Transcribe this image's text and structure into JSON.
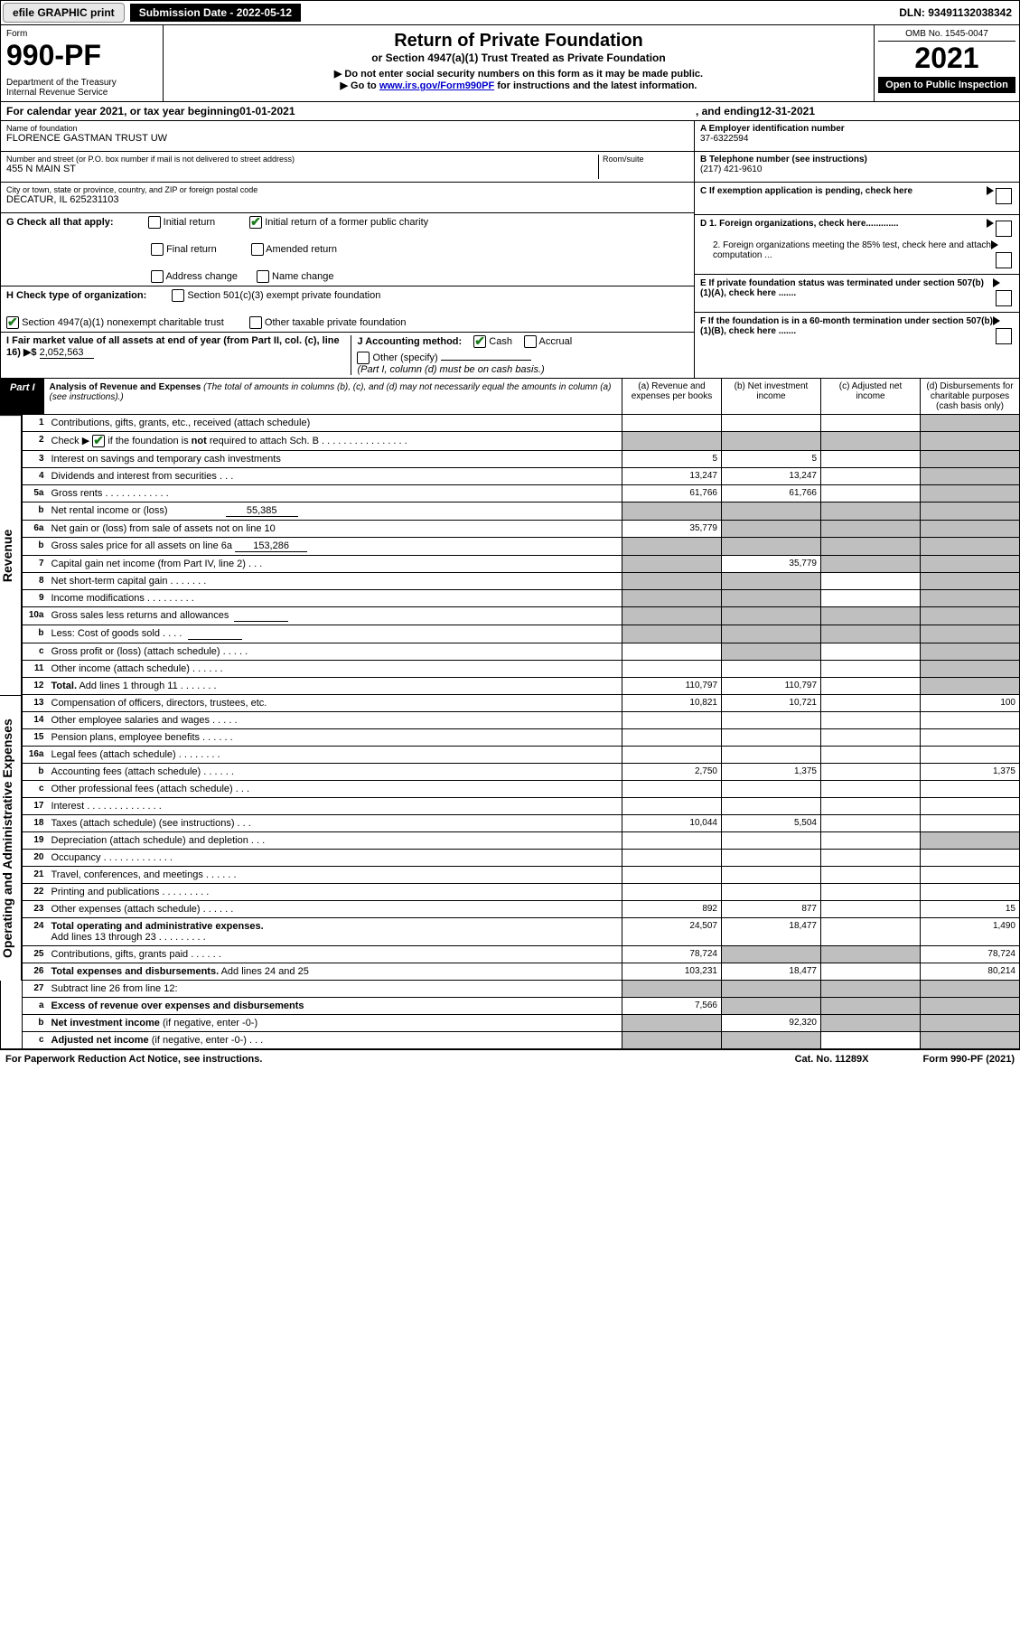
{
  "topbar": {
    "efile": "efile GRAPHIC print",
    "submission_label": "Submission Date - 2022-05-12",
    "dln": "DLN: 93491132038342"
  },
  "header": {
    "form_label": "Form",
    "form_number": "990-PF",
    "dept": "Department of the Treasury\nInternal Revenue Service",
    "title": "Return of Private Foundation",
    "subtitle": "or Section 4947(a)(1) Trust Treated as Private Foundation",
    "note1": "▶ Do not enter social security numbers on this form as it may be made public.",
    "note2_prefix": "▶ Go to ",
    "note2_link": "www.irs.gov/Form990PF",
    "note2_suffix": " for instructions and the latest information.",
    "omb": "OMB No. 1545-0047",
    "year": "2021",
    "open": "Open to Public Inspection"
  },
  "cal_year": {
    "prefix": "For calendar year 2021, or tax year beginning ",
    "begin": "01-01-2021",
    "mid": ", and ending ",
    "end": "12-31-2021"
  },
  "info": {
    "name_label": "Name of foundation",
    "name": "FLORENCE GASTMAN TRUST UW",
    "addr_label": "Number and street (or P.O. box number if mail is not delivered to street address)",
    "addr": "455 N MAIN ST",
    "room_label": "Room/suite",
    "city_label": "City or town, state or province, country, and ZIP or foreign postal code",
    "city": "DECATUR, IL 625231103",
    "a_label": "A Employer identification number",
    "a_val": "37-6322594",
    "b_label": "B Telephone number (see instructions)",
    "b_val": "(217) 421-9610",
    "c_label": "C If exemption application is pending, check here",
    "d1_label": "D 1. Foreign organizations, check here.............",
    "d2_label": "2. Foreign organizations meeting the 85% test, check here and attach computation ...",
    "e_label": "E If private foundation status was terminated under section 507(b)(1)(A), check here .......",
    "f_label": "F If the foundation is in a 60-month termination under section 507(b)(1)(B), check here ......."
  },
  "checks": {
    "g_label": "G Check all that apply:",
    "g_opts": [
      "Initial return",
      "Initial return of a former public charity",
      "Final return",
      "Amended return",
      "Address change",
      "Name change"
    ],
    "h_label": "H Check type of organization:",
    "h_opt1": "Section 501(c)(3) exempt private foundation",
    "h_opt2": "Section 4947(a)(1) nonexempt charitable trust",
    "h_opt3": "Other taxable private foundation",
    "i_label": "I Fair market value of all assets at end of year (from Part II, col. (c), line 16) ▶$",
    "i_val": "2,052,563",
    "j_label": "J Accounting method:",
    "j_cash": "Cash",
    "j_accrual": "Accrual",
    "j_other": "Other (specify)",
    "j_note": "(Part I, column (d) must be on cash basis.)"
  },
  "part1": {
    "label": "Part I",
    "title": "Analysis of Revenue and Expenses",
    "title_note": "(The total of amounts in columns (b), (c), and (d) may not necessarily equal the amounts in column (a) (see instructions).)",
    "col_a": "(a) Revenue and expenses per books",
    "col_b": "(b) Net investment income",
    "col_c": "(c) Adjusted net income",
    "col_d": "(d) Disbursements for charitable purposes (cash basis only)"
  },
  "sections": {
    "revenue": "Revenue",
    "expenses": "Operating and Administrative Expenses"
  },
  "rows": [
    {
      "n": "1",
      "d": "",
      "a": "",
      "b": "",
      "c": "",
      "gd": true
    },
    {
      "n": "2",
      "d": "",
      "a": "",
      "b": "",
      "c": "",
      "ga": true,
      "gb": true,
      "gc": true,
      "gd": true
    },
    {
      "n": "3",
      "d": "",
      "a": "5",
      "b": "5",
      "c": "",
      "gd": true
    },
    {
      "n": "4",
      "d": "",
      "a": "13,247",
      "b": "13,247",
      "c": "",
      "gd": true
    },
    {
      "n": "5a",
      "d": "",
      "a": "61,766",
      "b": "61,766",
      "c": "",
      "gd": true
    },
    {
      "n": "b",
      "d": "",
      "a": "",
      "b": "",
      "c": "",
      "ga": true,
      "gb": true,
      "gc": true,
      "gd": true
    },
    {
      "n": "6a",
      "d": "",
      "a": "35,779",
      "b": "",
      "c": "",
      "gb": true,
      "gc": true,
      "gd": true
    },
    {
      "n": "b",
      "d": "",
      "a": "",
      "b": "",
      "c": "",
      "ga": true,
      "gb": true,
      "gc": true,
      "gd": true
    },
    {
      "n": "7",
      "d": "",
      "a": "",
      "b": "35,779",
      "c": "",
      "ga": true,
      "gc": true,
      "gd": true
    },
    {
      "n": "8",
      "d": "",
      "a": "",
      "b": "",
      "c": "",
      "ga": true,
      "gb": true,
      "gd": true
    },
    {
      "n": "9",
      "d": "",
      "a": "",
      "b": "",
      "c": "",
      "ga": true,
      "gb": true,
      "gd": true
    },
    {
      "n": "10a",
      "d": "",
      "a": "",
      "b": "",
      "c": "",
      "ga": true,
      "gb": true,
      "gc": true,
      "gd": true
    },
    {
      "n": "b",
      "d": "",
      "a": "",
      "b": "",
      "c": "",
      "ga": true,
      "gb": true,
      "gc": true,
      "gd": true
    },
    {
      "n": "c",
      "d": "",
      "a": "",
      "b": "",
      "c": "",
      "gb": true,
      "gd": true
    },
    {
      "n": "11",
      "d": "",
      "a": "",
      "b": "",
      "c": "",
      "gd": true
    },
    {
      "n": "12",
      "d": "",
      "a": "110,797",
      "b": "110,797",
      "c": "",
      "gd": true
    }
  ],
  "exp_rows": [
    {
      "n": "13",
      "d": "100",
      "a": "10,821",
      "b": "10,721",
      "c": ""
    },
    {
      "n": "14",
      "d": "",
      "a": "",
      "b": "",
      "c": ""
    },
    {
      "n": "15",
      "d": "",
      "a": "",
      "b": "",
      "c": ""
    },
    {
      "n": "16a",
      "d": "",
      "a": "",
      "b": "",
      "c": ""
    },
    {
      "n": "b",
      "d": "1,375",
      "a": "2,750",
      "b": "1,375",
      "c": ""
    },
    {
      "n": "c",
      "d": "",
      "a": "",
      "b": "",
      "c": ""
    },
    {
      "n": "17",
      "d": "",
      "a": "",
      "b": "",
      "c": ""
    },
    {
      "n": "18",
      "d": "",
      "a": "10,044",
      "b": "5,504",
      "c": ""
    },
    {
      "n": "19",
      "d": "",
      "a": "",
      "b": "",
      "c": "",
      "gd": true
    },
    {
      "n": "20",
      "d": "",
      "a": "",
      "b": "",
      "c": ""
    },
    {
      "n": "21",
      "d": "",
      "a": "",
      "b": "",
      "c": ""
    },
    {
      "n": "22",
      "d": "",
      "a": "",
      "b": "",
      "c": ""
    },
    {
      "n": "23",
      "d": "15",
      "a": "892",
      "b": "877",
      "c": ""
    },
    {
      "n": "24",
      "d": "1,490",
      "a": "24,507",
      "b": "18,477",
      "c": ""
    },
    {
      "n": "25",
      "d": "78,724",
      "a": "78,724",
      "b": "",
      "c": "",
      "gb": true,
      "gc": true
    },
    {
      "n": "26",
      "d": "80,214",
      "a": "103,231",
      "b": "18,477",
      "c": ""
    }
  ],
  "bottom_rows": [
    {
      "n": "27",
      "d": "",
      "a": "",
      "b": "",
      "c": "",
      "ga": true,
      "gb": true,
      "gc": true,
      "gd": true
    },
    {
      "n": "a",
      "d": "",
      "a": "7,566",
      "b": "",
      "c": "",
      "gb": true,
      "gc": true,
      "gd": true
    },
    {
      "n": "b",
      "d": "",
      "a": "",
      "b": "92,320",
      "c": "",
      "ga": true,
      "gc": true,
      "gd": true
    },
    {
      "n": "c",
      "d": "",
      "a": "",
      "b": "",
      "c": "",
      "ga": true,
      "gb": true,
      "gd": true
    }
  ],
  "footer": {
    "left": "For Paperwork Reduction Act Notice, see instructions.",
    "mid": "Cat. No. 11289X",
    "right": "Form 990-PF (2021)"
  },
  "style": {
    "bg": "#ffffff",
    "text": "#000000",
    "gray": "#bfbfbf",
    "link": "#0000cc",
    "check_green": "#1a7a1a",
    "font_small": 10,
    "font_base": 11,
    "font_title": 20,
    "font_year": 32
  }
}
